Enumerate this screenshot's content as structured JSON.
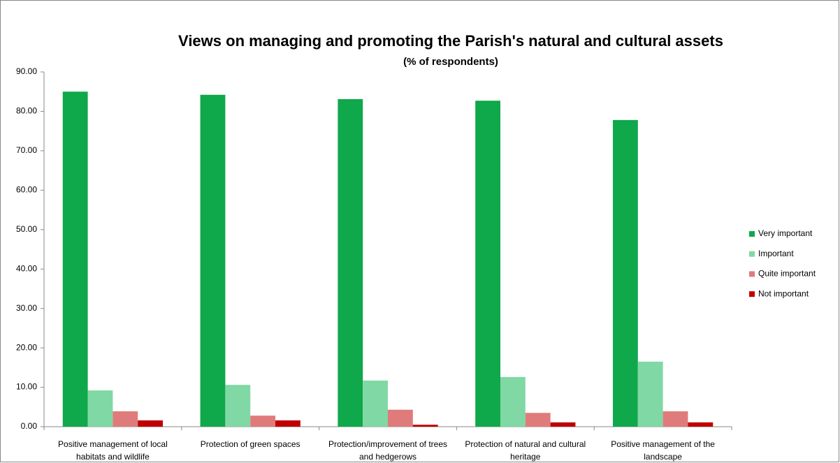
{
  "chart_data": {
    "type": "bar",
    "title": "Views on managing and promoting the Parish's natural and cultural assets",
    "subtitle": "(% of respondents)",
    "categories": [
      "Positive management  of local habitats and wildlife",
      "Protection of green spaces",
      "Protection/improvement of trees and hedgerows",
      "Protection of natural and cultural heritage",
      "Positive management  of the landscape"
    ],
    "series": [
      {
        "name": "Very important",
        "color": "#0fa84a",
        "values": [
          85.0,
          84.2,
          83.1,
          82.7,
          77.8
        ]
      },
      {
        "name": "Important",
        "color": "#80d8a4",
        "values": [
          9.2,
          10.6,
          11.7,
          12.6,
          16.5
        ]
      },
      {
        "name": "Quite important",
        "color": "#e07b7b",
        "values": [
          3.9,
          2.8,
          4.3,
          3.5,
          3.9
        ]
      },
      {
        "name": "Not important",
        "color": "#c00000",
        "values": [
          1.6,
          1.6,
          0.5,
          1.1,
          1.1
        ]
      }
    ],
    "ylim": [
      0,
      90
    ],
    "yticks": [
      {
        "value": 0,
        "label": "0.00"
      },
      {
        "value": 10,
        "label": "10.00"
      },
      {
        "value": 20,
        "label": "20.00"
      },
      {
        "value": 30,
        "label": "30.00"
      },
      {
        "value": 40,
        "label": "40.00"
      },
      {
        "value": 50,
        "label": "50.00"
      },
      {
        "value": 60,
        "label": "60.00"
      },
      {
        "value": 70,
        "label": "70.00"
      },
      {
        "value": 80,
        "label": "80.00"
      },
      {
        "value": 90,
        "label": "90.00"
      }
    ],
    "grid": false,
    "legend": "right"
  }
}
